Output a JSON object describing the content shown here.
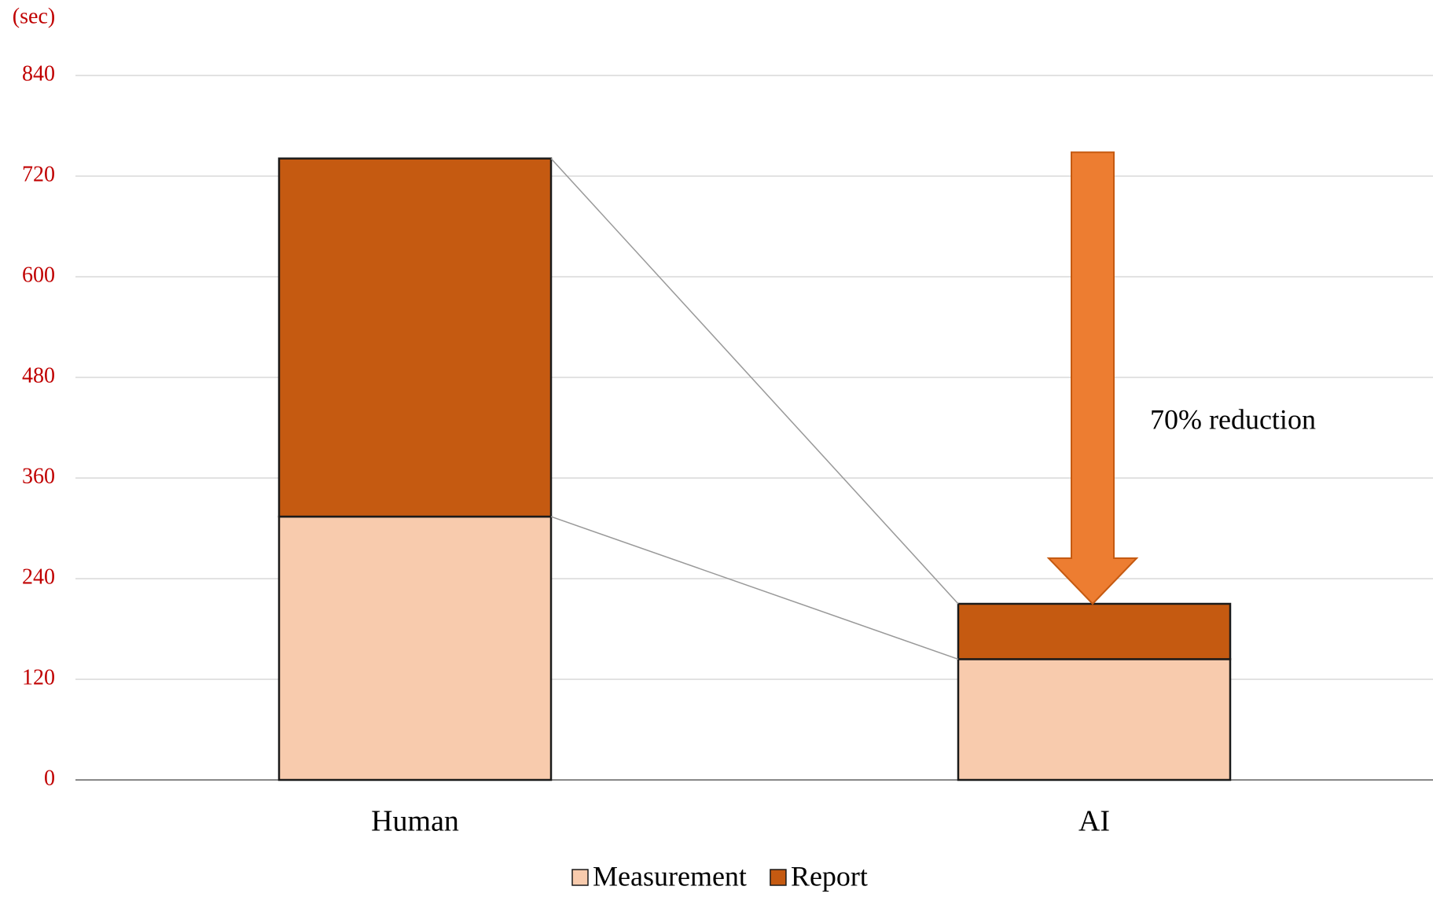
{
  "chart_data": {
    "type": "bar",
    "stacked": true,
    "y_label": "(sec)",
    "annotation": "70% reduction",
    "categories": [
      "Human",
      "AI"
    ],
    "series": [
      {
        "name": "Measurement",
        "color": "#f8cbad",
        "values": [
          314,
          144
        ]
      },
      {
        "name": "Report",
        "color": "#c55a11",
        "values": [
          427,
          66
        ]
      }
    ],
    "ylim": [
      0,
      840
    ],
    "yticks": [
      0,
      120,
      240,
      360,
      480,
      600,
      720,
      840
    ],
    "grid": true,
    "legend": "bottom"
  }
}
